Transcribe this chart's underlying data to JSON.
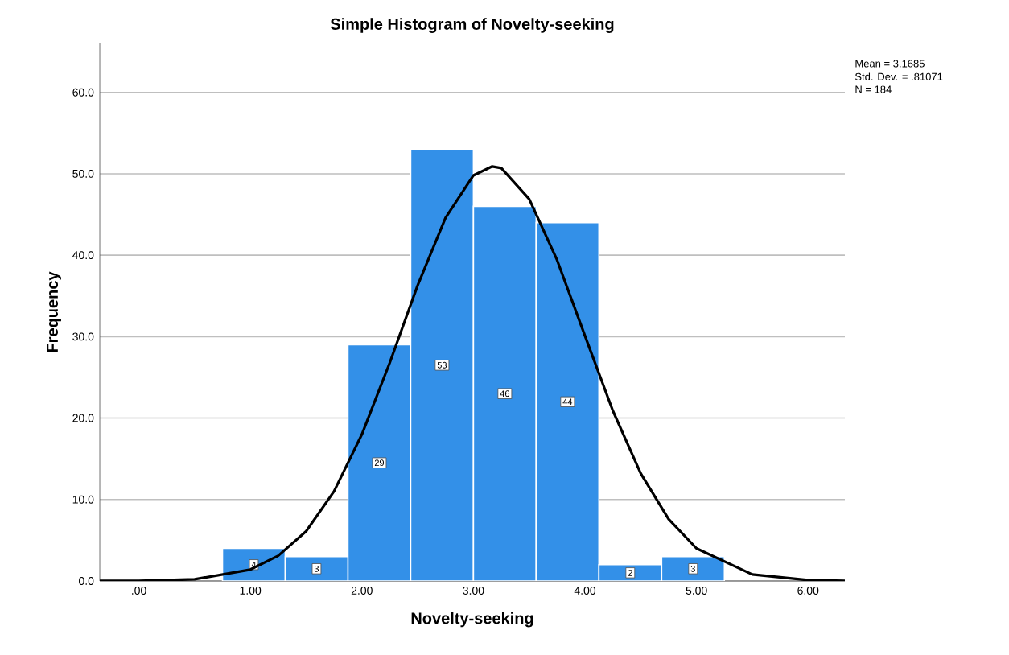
{
  "chart_data": {
    "type": "histogram",
    "title": "Simple Histogram of Novelty-seeking",
    "xlabel": "Novelty-seeking",
    "ylabel": "Frequency",
    "bins": [
      0.75,
      1.3125,
      1.875,
      2.4375,
      3.0,
      3.5625,
      4.125,
      4.6875,
      5.25
    ],
    "values": [
      4,
      3,
      29,
      53,
      46,
      44,
      2,
      3
    ],
    "color": "#3390e8",
    "value_labels": [
      "4",
      "3",
      "29",
      "53",
      "46",
      "44",
      "2",
      "3"
    ],
    "series": [
      {
        "type": "line",
        "color": "#000000",
        "x": [
          -0.35,
          0,
          0.5,
          1,
          1.25,
          1.5,
          1.75,
          2,
          2.25,
          2.5,
          2.75,
          3,
          3.1685,
          3.25,
          3.5,
          3.75,
          4,
          4.25,
          4.5,
          4.75,
          5,
          5.5,
          6,
          6.33
        ],
        "values": [
          0.0,
          0.0,
          0.2,
          1.4,
          3.1,
          6.1,
          11.0,
          18.0,
          26.8,
          36.3,
          44.6,
          49.8,
          50.9,
          50.7,
          46.9,
          39.4,
          30.1,
          20.9,
          13.2,
          7.6,
          4.0,
          0.8,
          0.1,
          0.0
        ]
      }
    ],
    "xlim": [
      -0.35,
      6.33
    ],
    "ylim": [
      0,
      66
    ],
    "xticks": [
      {
        "value": 0,
        "label": ".00"
      },
      {
        "value": 1,
        "label": "1.00"
      },
      {
        "value": 2,
        "label": "2.00"
      },
      {
        "value": 3,
        "label": "3.00"
      },
      {
        "value": 4,
        "label": "4.00"
      },
      {
        "value": 5,
        "label": "5.00"
      },
      {
        "value": 6,
        "label": "6.00"
      }
    ],
    "yticks": [
      {
        "value": 0,
        "label": "0.0"
      },
      {
        "value": 10,
        "label": "10.0"
      },
      {
        "value": 20,
        "label": "20.0"
      },
      {
        "value": 30,
        "label": "30.0"
      },
      {
        "value": 40,
        "label": "40.0"
      },
      {
        "value": 50,
        "label": "50.0"
      },
      {
        "value": 60,
        "label": "60.0"
      }
    ],
    "grid": "y",
    "annotations": [
      "Mean = 3.1685",
      "Std. Dev. = .81071",
      "N = 184"
    ]
  }
}
